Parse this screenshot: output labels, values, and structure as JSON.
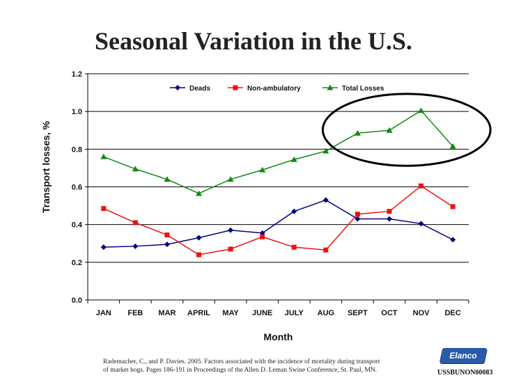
{
  "page": {
    "title": "Seasonal Variation in the U.S.",
    "citation_line1": "Rademacher, C., and P. Davies.  2005.  Factors associated with the incidence of mortality during transport",
    "citation_line2": "of market hogs.  Pages 186-191 in Proceedings of the Allen D. Leman Swine Conference, St. Paul, MN.",
    "logo_text": "Elanco",
    "logo_color": "#2a5aa8",
    "doc_id": "USSBUNON00083"
  },
  "chart_data": {
    "type": "line",
    "title": "Seasonal Variation in the U.S.",
    "xlabel": "Month",
    "ylabel": "Transport losses, %",
    "ylim": [
      0,
      1.2
    ],
    "yticks": [
      "0.0",
      "0.2",
      "0.4",
      "0.6",
      "0.8",
      "1.0",
      "1.2"
    ],
    "grid": "horizontal",
    "legend_position": "top",
    "categories": [
      "JAN",
      "FEB",
      "MAR",
      "APRIL",
      "MAY",
      "JUNE",
      "JULY",
      "AUG",
      "SEPT",
      "OCT",
      "NOV",
      "DEC"
    ],
    "series": [
      {
        "name": "Deads",
        "color": "#000080",
        "marker": "diamond",
        "values": [
          0.28,
          0.285,
          0.295,
          0.33,
          0.37,
          0.355,
          0.47,
          0.53,
          0.43,
          0.43,
          0.405,
          0.32
        ]
      },
      {
        "name": "Non-ambulatory",
        "color": "#ee1111",
        "marker": "square",
        "values": [
          0.485,
          0.41,
          0.345,
          0.24,
          0.27,
          0.335,
          0.28,
          0.265,
          0.455,
          0.47,
          0.605,
          0.495
        ]
      },
      {
        "name": "Total Losses",
        "color": "#118811",
        "marker": "triangle",
        "values": [
          0.76,
          0.695,
          0.64,
          0.565,
          0.64,
          0.69,
          0.745,
          0.79,
          0.885,
          0.9,
          1.005,
          0.815
        ]
      }
    ],
    "annotation": {
      "shape": "ellipse",
      "color": "#000000",
      "highlights": [
        "SEPT",
        "OCT",
        "NOV",
        "DEC"
      ]
    }
  }
}
